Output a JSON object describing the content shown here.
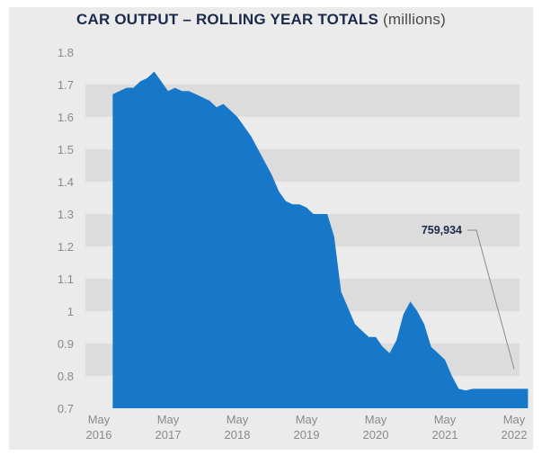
{
  "title": "CAR OUTPUT – ROLLING YEAR TOTALS",
  "title_unit": "(millions)",
  "colors": {
    "background": "#ebebeb",
    "band": "#dcdcdc",
    "fill": "#1777c9",
    "text": "#1b2a4a",
    "tick": "#8a8a8a"
  },
  "chart_data": {
    "type": "area",
    "title": "CAR OUTPUT – ROLLING YEAR TOTALS (millions)",
    "xlabel": "",
    "ylabel": "",
    "ylim": [
      0.7,
      1.8
    ],
    "yticks": [
      "1.8",
      "1.7",
      "1.6",
      "1.5",
      "1.4",
      "1.3",
      "1.2",
      "1.1",
      "1",
      "0.9",
      "0.8",
      "0.7"
    ],
    "xticks": [
      {
        "line1": "May",
        "line2": "2016"
      },
      {
        "line1": "May",
        "line2": "2017"
      },
      {
        "line1": "May",
        "line2": "2018"
      },
      {
        "line1": "May",
        "line2": "2019"
      },
      {
        "line1": "May",
        "line2": "2020"
      },
      {
        "line1": "May",
        "line2": "2021"
      },
      {
        "line1": "May",
        "line2": "2022"
      }
    ],
    "x_range": [
      2016.0,
      2022.0
    ],
    "grid": "alternating horizontal bands",
    "series": [
      {
        "x": [
          2016.2,
          2016.3,
          2016.4,
          2016.5,
          2016.6,
          2016.7,
          2016.8,
          2016.9,
          2017.0,
          2017.1,
          2017.2,
          2017.3,
          2017.4,
          2017.5,
          2017.6,
          2017.7,
          2017.8,
          2017.9,
          2018.0,
          2018.1,
          2018.2,
          2018.3,
          2018.4,
          2018.5,
          2018.6,
          2018.7,
          2018.8,
          2018.9,
          2019.0,
          2019.1,
          2019.2,
          2019.3,
          2019.4,
          2019.5,
          2019.6,
          2019.7,
          2019.8,
          2019.9,
          2020.0,
          2020.1,
          2020.2,
          2020.3,
          2020.4,
          2020.5,
          2020.6,
          2020.7,
          2020.8,
          2020.9,
          2021.0,
          2021.1,
          2021.2,
          2021.3,
          2021.4,
          2021.5,
          2021.6,
          2021.7,
          2021.8,
          2021.9,
          2022.0,
          2022.1,
          2022.2
        ],
        "values": [
          1.67,
          1.68,
          1.69,
          1.69,
          1.71,
          1.72,
          1.74,
          1.71,
          1.68,
          1.69,
          1.68,
          1.68,
          1.67,
          1.66,
          1.65,
          1.63,
          1.64,
          1.62,
          1.6,
          1.57,
          1.54,
          1.5,
          1.46,
          1.42,
          1.37,
          1.34,
          1.33,
          1.33,
          1.32,
          1.3,
          1.3,
          1.3,
          1.23,
          1.06,
          1.01,
          0.96,
          0.94,
          0.92,
          0.92,
          0.89,
          0.87,
          0.91,
          0.99,
          1.03,
          1.0,
          0.96,
          0.89,
          0.87,
          0.85,
          0.8,
          0.76,
          0.755,
          0.76,
          0.76,
          0.76,
          0.76,
          0.76,
          0.76,
          0.76,
          0.76,
          0.76
        ]
      }
    ],
    "annotations": [
      {
        "text": "759,934",
        "x": 2022.0,
        "y": 0.76
      }
    ]
  }
}
